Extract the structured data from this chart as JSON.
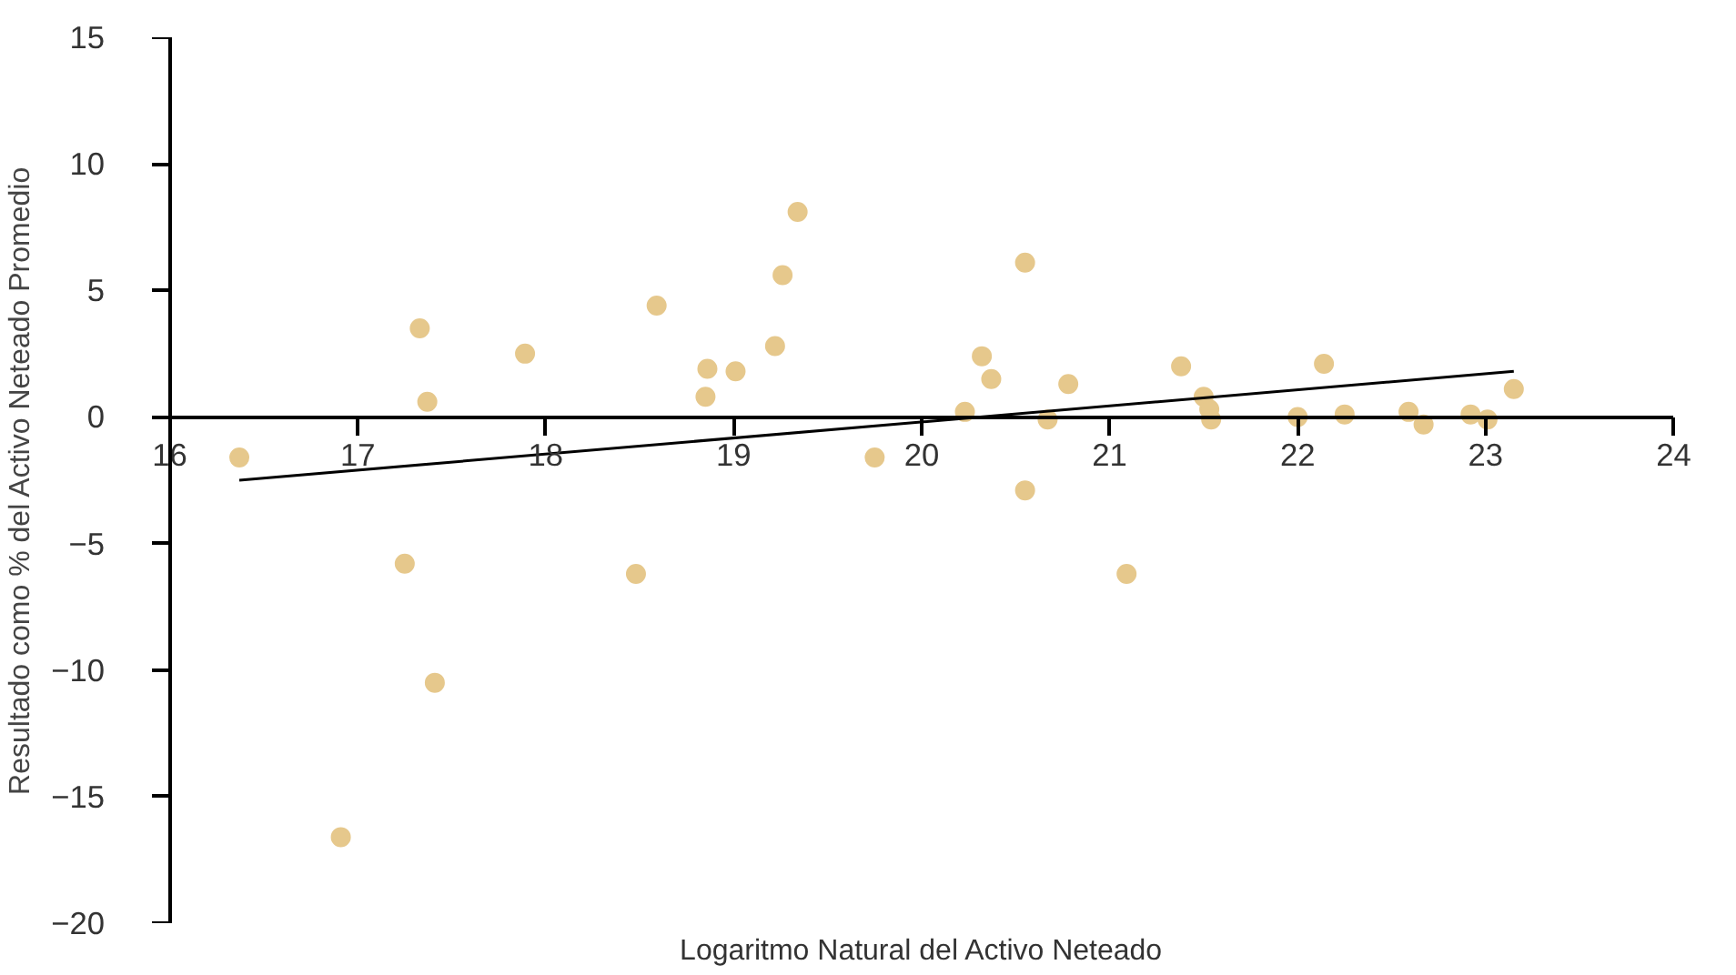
{
  "chart_data": {
    "type": "scatter",
    "xlabel": "Logaritmo Natural del Activo Neteado",
    "ylabel": "Resultado como % del Activo Neteado Promedio",
    "xlim": [
      16,
      24
    ],
    "ylim": [
      -20,
      15
    ],
    "xticks": [
      16,
      17,
      18,
      19,
      20,
      21,
      22,
      23,
      24
    ],
    "yticks": [
      -20,
      -15,
      -10,
      -5,
      0,
      5,
      10,
      15
    ],
    "grid": false,
    "series": [
      {
        "marker": "circle",
        "color": "#e6c88c",
        "x": [
          16.37,
          16.91,
          17.25,
          17.33,
          17.37,
          17.41,
          17.89,
          18.48,
          18.59,
          18.85,
          18.86,
          19.01,
          19.22,
          19.26,
          19.34,
          19.75,
          20.23,
          20.32,
          20.37,
          20.55,
          20.55,
          20.67,
          20.78,
          21.09,
          21.38,
          21.5,
          21.53,
          21.54,
          22.0,
          22.14,
          22.25,
          22.59,
          22.67,
          22.92,
          23.01,
          23.15
        ],
        "values": [
          -1.6,
          -16.6,
          -5.8,
          3.5,
          0.6,
          -10.5,
          2.5,
          -6.2,
          4.4,
          0.8,
          1.9,
          1.8,
          2.8,
          5.6,
          8.1,
          -1.6,
          0.2,
          2.4,
          1.5,
          6.1,
          -2.9,
          -0.1,
          1.3,
          -6.2,
          2.0,
          0.8,
          0.3,
          -0.1,
          0.0,
          2.1,
          0.1,
          0.2,
          -0.3,
          0.1,
          -0.1,
          1.1
        ]
      },
      {
        "type": "line",
        "color": "#000000",
        "x": [
          16.37,
          23.15
        ],
        "values": [
          -2.5,
          1.8
        ]
      }
    ]
  }
}
